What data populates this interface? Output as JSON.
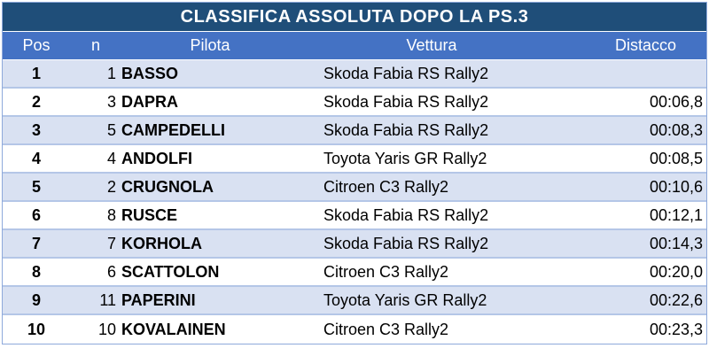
{
  "title": "CLASSIFICA ASSOLUTA DOPO LA PS.3",
  "headers": {
    "pos": "Pos",
    "n": "n",
    "pilota": "Pilota",
    "vettura": "Vettura",
    "distacco": "Distacco"
  },
  "rows": [
    {
      "pos": "1",
      "n": "1",
      "pilota": "BASSO",
      "vettura": "Skoda Fabia RS Rally2",
      "distacco": ""
    },
    {
      "pos": "2",
      "n": "3",
      "pilota": "DAPRA",
      "vettura": "Skoda Fabia RS Rally2",
      "distacco": "00:06,8"
    },
    {
      "pos": "3",
      "n": "5",
      "pilota": "CAMPEDELLI",
      "vettura": "Skoda Fabia RS Rally2",
      "distacco": "00:08,3"
    },
    {
      "pos": "4",
      "n": "4",
      "pilota": "ANDOLFI",
      "vettura": "Toyota Yaris GR Rally2",
      "distacco": "00:08,5"
    },
    {
      "pos": "5",
      "n": "2",
      "pilota": "CRUGNOLA",
      "vettura": "Citroen C3 Rally2",
      "distacco": "00:10,6"
    },
    {
      "pos": "6",
      "n": "8",
      "pilota": "RUSCE",
      "vettura": "Skoda Fabia RS Rally2",
      "distacco": "00:12,1"
    },
    {
      "pos": "7",
      "n": "7",
      "pilota": "KORHOLA",
      "vettura": "Skoda Fabia RS Rally2",
      "distacco": "00:14,3"
    },
    {
      "pos": "8",
      "n": "6",
      "pilota": "SCATTOLON",
      "vettura": "Citroen C3 Rally2",
      "distacco": "00:20,0"
    },
    {
      "pos": "9",
      "n": "11",
      "pilota": "PAPERINI",
      "vettura": "Toyota Yaris GR Rally2",
      "distacco": "00:22,6"
    },
    {
      "pos": "10",
      "n": "10",
      "pilota": "KOVALAINEN",
      "vettura": "Citroen C3 Rally2",
      "distacco": "00:23,3"
    }
  ],
  "colors": {
    "title_bg": "#1f4e79",
    "header_bg": "#4472c4",
    "odd_row_bg": "#d9e1f2",
    "even_row_bg": "#ffffff"
  }
}
